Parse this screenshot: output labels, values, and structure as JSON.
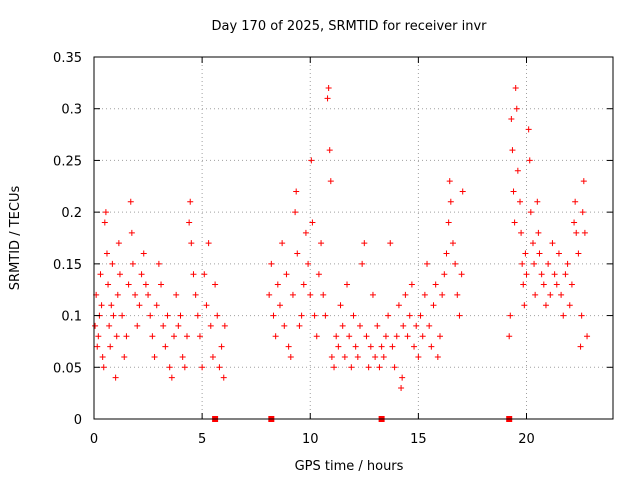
{
  "chart_data": {
    "type": "scatter",
    "title": "Day 170 of 2025, SRMTID for receiver invr",
    "xlabel": "GPS time / hours",
    "ylabel": "SRMTID / TECUs",
    "xlim": [
      0,
      24
    ],
    "ylim": [
      0,
      0.35
    ],
    "x_ticks": [
      0,
      5,
      10,
      15,
      20
    ],
    "x_tick_labels": [
      "0",
      "5",
      "10",
      "15",
      "20"
    ],
    "y_ticks": [
      0,
      0.05,
      0.1,
      0.15,
      0.2,
      0.25,
      0.3,
      0.35
    ],
    "y_tick_labels": [
      "0",
      "0.05",
      "0.1",
      "0.15",
      "0.2",
      "0.25",
      "0.3",
      "0.35"
    ],
    "grid": true,
    "marker": "plus",
    "color": "#ff0000",
    "gap_markers_x": [
      5.6,
      8.2,
      13.3,
      19.2
    ],
    "series": [
      {
        "points": [
          [
            0.05,
            0.09
          ],
          [
            0.1,
            0.12
          ],
          [
            0.15,
            0.07
          ],
          [
            0.2,
            0.08
          ],
          [
            0.25,
            0.1
          ],
          [
            0.3,
            0.14
          ],
          [
            0.35,
            0.11
          ],
          [
            0.4,
            0.06
          ],
          [
            0.45,
            0.05
          ],
          [
            0.5,
            0.19
          ],
          [
            0.55,
            0.2
          ],
          [
            0.6,
            0.16
          ],
          [
            0.65,
            0.13
          ],
          [
            0.7,
            0.09
          ],
          [
            0.75,
            0.07
          ],
          [
            0.8,
            0.11
          ],
          [
            0.85,
            0.15
          ],
          [
            0.9,
            0.1
          ],
          [
            1.0,
            0.04
          ],
          [
            1.05,
            0.08
          ],
          [
            1.1,
            0.12
          ],
          [
            1.15,
            0.17
          ],
          [
            1.2,
            0.14
          ],
          [
            1.3,
            0.1
          ],
          [
            1.4,
            0.06
          ],
          [
            1.5,
            0.08
          ],
          [
            1.6,
            0.13
          ],
          [
            1.7,
            0.21
          ],
          [
            1.75,
            0.18
          ],
          [
            1.8,
            0.15
          ],
          [
            1.9,
            0.12
          ],
          [
            2.0,
            0.09
          ],
          [
            2.1,
            0.11
          ],
          [
            2.2,
            0.14
          ],
          [
            2.3,
            0.16
          ],
          [
            2.4,
            0.13
          ],
          [
            2.5,
            0.12
          ],
          [
            2.6,
            0.1
          ],
          [
            2.7,
            0.08
          ],
          [
            2.8,
            0.06
          ],
          [
            2.9,
            0.11
          ],
          [
            3.0,
            0.15
          ],
          [
            3.1,
            0.13
          ],
          [
            3.2,
            0.09
          ],
          [
            3.3,
            0.07
          ],
          [
            3.4,
            0.1
          ],
          [
            3.5,
            0.05
          ],
          [
            3.6,
            0.04
          ],
          [
            3.7,
            0.08
          ],
          [
            3.8,
            0.12
          ],
          [
            3.9,
            0.09
          ],
          [
            4.0,
            0.1
          ],
          [
            4.1,
            0.06
          ],
          [
            4.2,
            0.05
          ],
          [
            4.3,
            0.08
          ],
          [
            4.4,
            0.19
          ],
          [
            4.45,
            0.21
          ],
          [
            4.5,
            0.17
          ],
          [
            4.6,
            0.14
          ],
          [
            4.7,
            0.12
          ],
          [
            4.8,
            0.1
          ],
          [
            4.9,
            0.08
          ],
          [
            5.0,
            0.05
          ],
          [
            5.1,
            0.14
          ],
          [
            5.2,
            0.11
          ],
          [
            5.3,
            0.17
          ],
          [
            5.4,
            0.09
          ],
          [
            5.5,
            0.06
          ],
          [
            5.6,
            0.13
          ],
          [
            5.7,
            0.1
          ],
          [
            5.8,
            0.05
          ],
          [
            5.9,
            0.07
          ],
          [
            6.0,
            0.04
          ],
          [
            6.05,
            0.09
          ],
          [
            8.1,
            0.12
          ],
          [
            8.2,
            0.15
          ],
          [
            8.3,
            0.1
          ],
          [
            8.4,
            0.08
          ],
          [
            8.5,
            0.13
          ],
          [
            8.6,
            0.11
          ],
          [
            8.7,
            0.17
          ],
          [
            8.8,
            0.09
          ],
          [
            8.9,
            0.14
          ],
          [
            9.0,
            0.07
          ],
          [
            9.1,
            0.06
          ],
          [
            9.2,
            0.12
          ],
          [
            9.3,
            0.2
          ],
          [
            9.35,
            0.22
          ],
          [
            9.4,
            0.16
          ],
          [
            9.5,
            0.09
          ],
          [
            9.6,
            0.1
          ],
          [
            9.7,
            0.13
          ],
          [
            9.8,
            0.18
          ],
          [
            9.9,
            0.15
          ],
          [
            10.0,
            0.12
          ],
          [
            10.05,
            0.25
          ],
          [
            10.1,
            0.19
          ],
          [
            10.2,
            0.1
          ],
          [
            10.3,
            0.08
          ],
          [
            10.4,
            0.14
          ],
          [
            10.5,
            0.17
          ],
          [
            10.6,
            0.12
          ],
          [
            10.7,
            0.1
          ],
          [
            10.8,
            0.31
          ],
          [
            10.85,
            0.32
          ],
          [
            10.9,
            0.26
          ],
          [
            10.95,
            0.23
          ],
          [
            11.0,
            0.06
          ],
          [
            11.1,
            0.05
          ],
          [
            11.2,
            0.08
          ],
          [
            11.3,
            0.07
          ],
          [
            11.4,
            0.11
          ],
          [
            11.5,
            0.09
          ],
          [
            11.6,
            0.06
          ],
          [
            11.7,
            0.13
          ],
          [
            11.8,
            0.08
          ],
          [
            11.9,
            0.05
          ],
          [
            12.0,
            0.1
          ],
          [
            12.1,
            0.07
          ],
          [
            12.2,
            0.06
          ],
          [
            12.3,
            0.09
          ],
          [
            12.4,
            0.15
          ],
          [
            12.5,
            0.17
          ],
          [
            12.6,
            0.08
          ],
          [
            12.7,
            0.05
          ],
          [
            12.8,
            0.07
          ],
          [
            12.9,
            0.12
          ],
          [
            13.0,
            0.06
          ],
          [
            13.1,
            0.09
          ],
          [
            13.2,
            0.05
          ],
          [
            13.3,
            0.07
          ],
          [
            13.4,
            0.06
          ],
          [
            13.5,
            0.08
          ],
          [
            13.6,
            0.1
          ],
          [
            13.7,
            0.17
          ],
          [
            13.8,
            0.07
          ],
          [
            13.9,
            0.05
          ],
          [
            14.0,
            0.08
          ],
          [
            14.1,
            0.11
          ],
          [
            14.2,
            0.03
          ],
          [
            14.25,
            0.04
          ],
          [
            14.3,
            0.09
          ],
          [
            14.4,
            0.12
          ],
          [
            14.5,
            0.08
          ],
          [
            14.6,
            0.1
          ],
          [
            14.7,
            0.13
          ],
          [
            14.8,
            0.07
          ],
          [
            14.9,
            0.09
          ],
          [
            15.0,
            0.06
          ],
          [
            15.1,
            0.1
          ],
          [
            15.2,
            0.08
          ],
          [
            15.3,
            0.12
          ],
          [
            15.4,
            0.15
          ],
          [
            15.5,
            0.09
          ],
          [
            15.6,
            0.07
          ],
          [
            15.7,
            0.11
          ],
          [
            15.8,
            0.13
          ],
          [
            15.9,
            0.06
          ],
          [
            16.0,
            0.08
          ],
          [
            16.1,
            0.12
          ],
          [
            16.2,
            0.14
          ],
          [
            16.3,
            0.16
          ],
          [
            16.4,
            0.19
          ],
          [
            16.45,
            0.23
          ],
          [
            16.5,
            0.21
          ],
          [
            16.6,
            0.17
          ],
          [
            16.7,
            0.15
          ],
          [
            16.8,
            0.12
          ],
          [
            16.9,
            0.1
          ],
          [
            17.0,
            0.14
          ],
          [
            17.05,
            0.22
          ],
          [
            19.2,
            0.08
          ],
          [
            19.25,
            0.1
          ],
          [
            19.3,
            0.29
          ],
          [
            19.35,
            0.26
          ],
          [
            19.4,
            0.22
          ],
          [
            19.45,
            0.19
          ],
          [
            19.5,
            0.32
          ],
          [
            19.55,
            0.3
          ],
          [
            19.6,
            0.24
          ],
          [
            19.7,
            0.21
          ],
          [
            19.75,
            0.18
          ],
          [
            19.8,
            0.15
          ],
          [
            19.85,
            0.13
          ],
          [
            19.9,
            0.11
          ],
          [
            19.95,
            0.16
          ],
          [
            20.0,
            0.14
          ],
          [
            20.1,
            0.28
          ],
          [
            20.15,
            0.25
          ],
          [
            20.2,
            0.2
          ],
          [
            20.3,
            0.17
          ],
          [
            20.35,
            0.15
          ],
          [
            20.4,
            0.12
          ],
          [
            20.5,
            0.21
          ],
          [
            20.55,
            0.18
          ],
          [
            20.6,
            0.16
          ],
          [
            20.7,
            0.14
          ],
          [
            20.8,
            0.13
          ],
          [
            20.9,
            0.11
          ],
          [
            21.0,
            0.15
          ],
          [
            21.1,
            0.12
          ],
          [
            21.2,
            0.17
          ],
          [
            21.3,
            0.14
          ],
          [
            21.4,
            0.13
          ],
          [
            21.5,
            0.16
          ],
          [
            21.6,
            0.12
          ],
          [
            21.7,
            0.1
          ],
          [
            21.8,
            0.14
          ],
          [
            21.9,
            0.15
          ],
          [
            22.0,
            0.11
          ],
          [
            22.1,
            0.13
          ],
          [
            22.2,
            0.19
          ],
          [
            22.25,
            0.21
          ],
          [
            22.3,
            0.18
          ],
          [
            22.4,
            0.16
          ],
          [
            22.5,
            0.07
          ],
          [
            22.55,
            0.1
          ],
          [
            22.6,
            0.2
          ],
          [
            22.65,
            0.23
          ],
          [
            22.7,
            0.18
          ],
          [
            22.8,
            0.08
          ]
        ]
      }
    ]
  }
}
